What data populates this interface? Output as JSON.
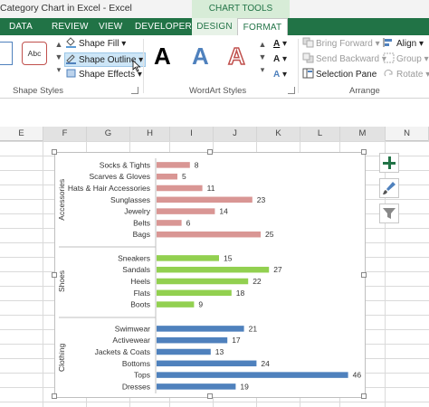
{
  "window": {
    "title": "Category Chart in Excel - Excel",
    "context_tab_group": "CHART TOOLS"
  },
  "tabs": [
    "DATA",
    "REVIEW",
    "VIEW",
    "DEVELOPER",
    "DESIGN",
    "FORMAT"
  ],
  "ribbon": {
    "shape_styles": {
      "label": "Shape Styles",
      "tile_text": "Abc",
      "shape_fill": "Shape Fill",
      "shape_outline": "Shape Outline",
      "shape_effects": "Shape Effects"
    },
    "wordart_styles": {
      "label": "WordArt Styles",
      "letter": "A"
    },
    "arrange": {
      "label": "Arrange",
      "bring_forward": "Bring Forward",
      "send_backward": "Send Backward",
      "selection_pane": "Selection Pane",
      "align": "Align",
      "group": "Group",
      "rotate": "Rotate"
    }
  },
  "columns": [
    "E",
    "F",
    "G",
    "H",
    "I",
    "J",
    "K",
    "L",
    "M",
    "N"
  ],
  "chart_data": {
    "type": "bar",
    "orientation": "horizontal",
    "groups": [
      {
        "name": "Accessories",
        "color": "#d99694",
        "categories": [
          "Socks & Tights",
          "Scarves & Gloves",
          "Hats & Hair Accessories",
          "Sunglasses",
          "Jewelry",
          "Belts",
          "Bags"
        ],
        "values": [
          8,
          5,
          11,
          23,
          14,
          6,
          25
        ]
      },
      {
        "name": "Shoes",
        "color": "#92d050",
        "categories": [
          "Sneakers",
          "Sandals",
          "Heels",
          "Flats",
          "Boots"
        ],
        "values": [
          15,
          27,
          22,
          18,
          9
        ]
      },
      {
        "name": "Clothing",
        "color": "#4f81bd",
        "categories": [
          "Swimwear",
          "Activewear",
          "Jackets & Coats",
          "Bottoms",
          "Tops",
          "Dresses"
        ],
        "values": [
          21,
          17,
          13,
          24,
          46,
          19
        ]
      }
    ],
    "data_labels": true,
    "gridlines": false
  },
  "side_buttons": [
    "plus-icon",
    "brush-icon",
    "filter-icon"
  ],
  "colors": {
    "excel_green": "#217346"
  }
}
